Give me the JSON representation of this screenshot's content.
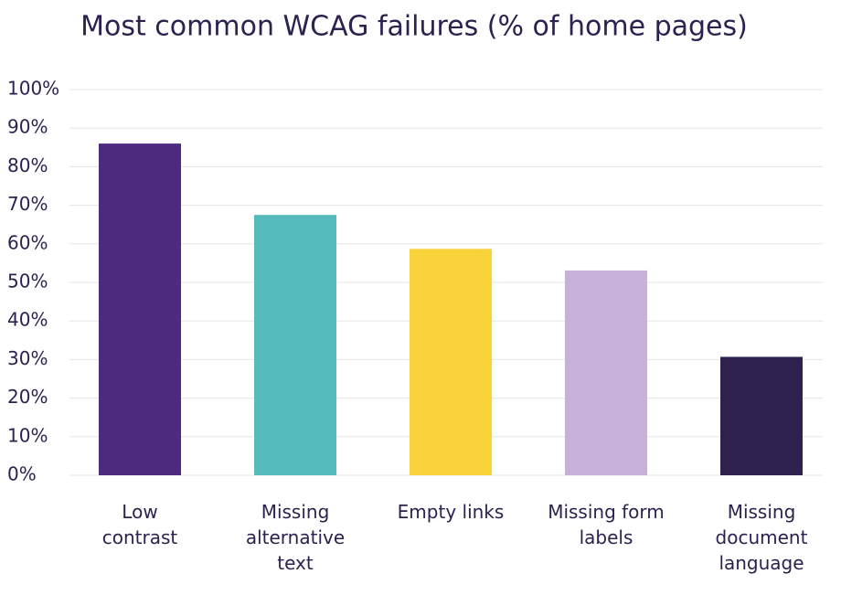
{
  "chart_data": {
    "type": "bar",
    "title": "Most common WCAG failures (% of home pages)",
    "categories": [
      "Low contrast",
      "Missing alternative text",
      "Empty links",
      "Missing form labels",
      "Missing document language"
    ],
    "values": [
      86,
      67.5,
      58.7,
      53.1,
      30.7
    ],
    "colors": [
      "#4e2a7e",
      "#56bbbd",
      "#f8d33a",
      "#c8b1d8",
      "#2e2150"
    ],
    "ylim": [
      0,
      100
    ],
    "yticks": [
      {
        "value": 0,
        "label": "0%"
      },
      {
        "value": 10,
        "label": "10%"
      },
      {
        "value": 20,
        "label": "20%"
      },
      {
        "value": 30,
        "label": "30%"
      },
      {
        "value": 40,
        "label": "40%"
      },
      {
        "value": 50,
        "label": "50%"
      },
      {
        "value": 60,
        "label": "60%"
      },
      {
        "value": 70,
        "label": "70%"
      },
      {
        "value": 80,
        "label": "80%"
      },
      {
        "value": 90,
        "label": "90%"
      },
      {
        "value": 100,
        "label": "100%"
      }
    ],
    "grid": true
  }
}
